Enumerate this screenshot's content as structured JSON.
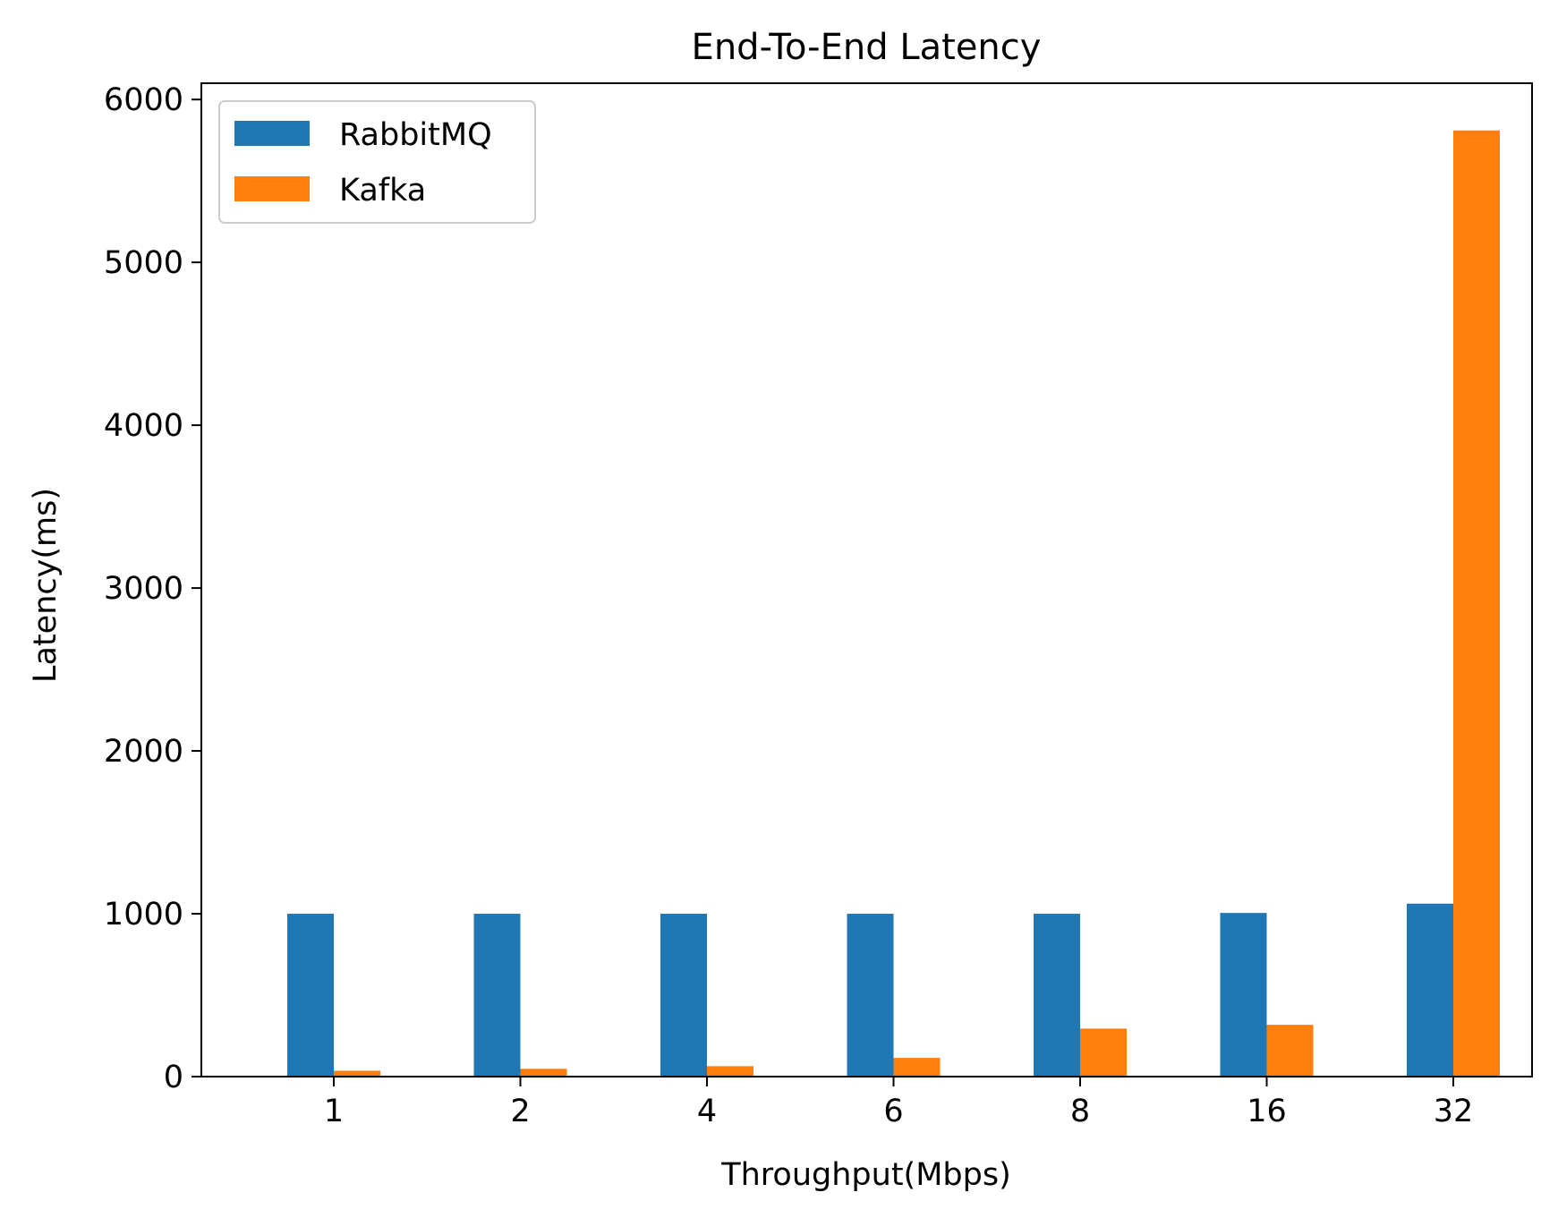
{
  "chart_data": {
    "type": "bar",
    "title": "End-To-End Latency",
    "xlabel": "Throughput(Mbps)",
    "ylabel": "Latency(ms)",
    "categories": [
      "1",
      "2",
      "4",
      "6",
      "8",
      "16",
      "32"
    ],
    "series": [
      {
        "name": "RabbitMQ",
        "color": "#1f77b4",
        "values": [
          1000,
          1000,
          1000,
          1000,
          1000,
          1005,
          1062
        ]
      },
      {
        "name": "Kafka",
        "color": "#ff7f0e",
        "values": [
          36,
          48,
          64,
          115,
          295,
          318,
          5810
        ]
      }
    ],
    "ylim": [
      0,
      6100
    ],
    "yticks": [
      0,
      1000,
      2000,
      3000,
      4000,
      5000,
      6000
    ],
    "grid": false,
    "legend": "upper-left"
  }
}
